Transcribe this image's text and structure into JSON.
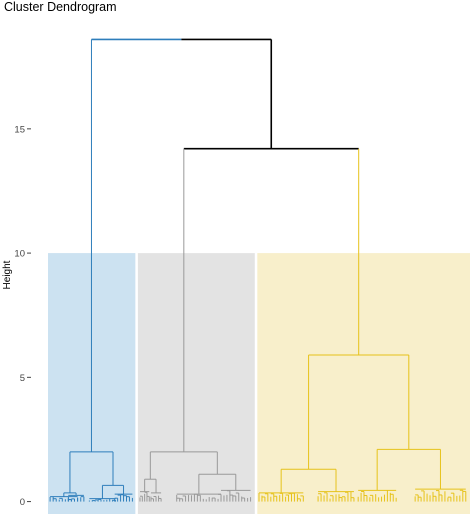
{
  "chart_data": {
    "type": "dendrogram",
    "title": "Cluster Dendrogram",
    "xlabel": "",
    "ylabel": "Height",
    "y_ticks": [
      0,
      5,
      10,
      15
    ],
    "ylim": [
      -0.5,
      19.3
    ],
    "x_range": [
      0,
      100
    ],
    "cut_height": 10.0,
    "grid": false,
    "colors": {
      "cluster_1": "#2E7EBB",
      "cluster_1_bg": "#CCE2F1",
      "cluster_2": "#999999",
      "cluster_2_bg": "#E3E3E3",
      "cluster_3": "#E6C21A",
      "cluster_3_bg": "#F8EFCB",
      "root": "#000000"
    },
    "cluster_bands": [
      {
        "cluster": "cluster_1",
        "x_start": 0.0,
        "x_end": 20.7
      },
      {
        "cluster": "cluster_2",
        "x_start": 21.3,
        "x_end": 49.0
      },
      {
        "cluster": "cluster_3",
        "x_start": 49.6,
        "x_end": 100.0
      }
    ],
    "nodes": [
      {
        "id": "n1",
        "height": 18.6,
        "children": [
          "n2",
          "n3"
        ],
        "cluster": "root"
      },
      {
        "id": "n2",
        "height": 2.0,
        "children": [
          "n2a",
          "n2b"
        ],
        "cluster": "cluster_1"
      },
      {
        "id": "n2a",
        "height": 0.35,
        "children": [
          "n2a1",
          "n2a2"
        ],
        "cluster": "cluster_1"
      },
      {
        "id": "n2a1",
        "height": 0.2,
        "x_span": [
          0.5,
          7.0
        ],
        "cluster": "cluster_1"
      },
      {
        "id": "n2a2",
        "height": 0.25,
        "x_span": [
          4.8,
          8.5
        ],
        "cluster": "cluster_1"
      },
      {
        "id": "n2b",
        "height": 0.65,
        "children": [
          "n2b1",
          "n2b2"
        ],
        "cluster": "cluster_1"
      },
      {
        "id": "n2b1",
        "height": 0.12,
        "x_span": [
          9.8,
          16.0
        ],
        "cluster": "cluster_1"
      },
      {
        "id": "n2b2",
        "height": 0.3,
        "x_span": [
          15.8,
          20.0
        ],
        "cluster": "cluster_1"
      },
      {
        "id": "n3",
        "height": 14.2,
        "children": [
          "n4",
          "n5"
        ],
        "cluster": "root"
      },
      {
        "id": "n4",
        "height": 2.0,
        "children": [
          "n4a",
          "n4b"
        ],
        "cluster": "cluster_2"
      },
      {
        "id": "n4a",
        "height": 0.9,
        "children": [
          "n4a1",
          "n4a2"
        ],
        "cluster": "cluster_2"
      },
      {
        "id": "n4a1",
        "height": 0.4,
        "x_span": [
          21.8,
          24.0
        ],
        "cluster": "cluster_2"
      },
      {
        "id": "n4a2",
        "height": 0.35,
        "x_span": [
          24.4,
          26.8
        ],
        "cluster": "cluster_2"
      },
      {
        "id": "n4b",
        "height": 1.1,
        "children": [
          "n4b1",
          "n4b2"
        ],
        "cluster": "cluster_2"
      },
      {
        "id": "n4b1",
        "height": 0.3,
        "x_span": [
          30.5,
          41.0
        ],
        "cluster": "cluster_2"
      },
      {
        "id": "n4b2",
        "height": 0.45,
        "x_span": [
          41.0,
          48.0
        ],
        "cluster": "cluster_2"
      },
      {
        "id": "n5",
        "height": 5.9,
        "children": [
          "n6",
          "n7"
        ],
        "cluster": "cluster_3"
      },
      {
        "id": "n6",
        "height": 1.3,
        "children": [
          "n6a",
          "n6b"
        ],
        "cluster": "cluster_3"
      },
      {
        "id": "n6a",
        "height": 0.35,
        "x_span": [
          50.0,
          60.5
        ],
        "cluster": "cluster_3"
      },
      {
        "id": "n6b",
        "height": 0.4,
        "x_span": [
          64.0,
          72.5
        ],
        "cluster": "cluster_3"
      },
      {
        "id": "n7",
        "height": 2.1,
        "children": [
          "n7a",
          "n7b"
        ],
        "cluster": "cluster_3"
      },
      {
        "id": "n7a",
        "height": 0.45,
        "x_span": [
          73.5,
          82.5
        ],
        "cluster": "cluster_3"
      },
      {
        "id": "n7b",
        "height": 0.5,
        "x_span": [
          87.0,
          99.0
        ],
        "cluster": "cluster_3"
      }
    ]
  }
}
